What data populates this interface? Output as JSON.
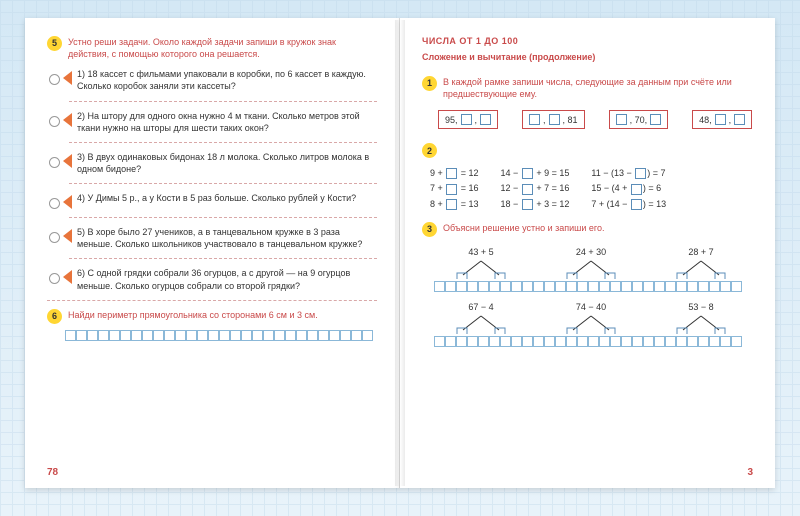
{
  "left": {
    "task5": {
      "num": "5",
      "text": "Устно реши задачи. Около каждой задачи запиши в кружок знак действия, с помощью которого она решается."
    },
    "p1": "1) 18 кассет с фильмами упаковали в коробки, по 6 кассет в каждую. Сколько коробок заняли эти кассеты?",
    "p2": "2) На штору для одного окна нужно 4 м ткани. Сколько метров этой ткани нужно на шторы для шести таких окон?",
    "p3": "3) В двух одинаковых бидонах 18 л молока. Сколько литров молока в одном бидоне?",
    "p4": "4) У Димы 5 р., а у Кости в 5 раз больше. Сколько рублей у Кости?",
    "p5": "5) В хоре было 27 учеников, а в танцевальном кружке в 3 раза меньше. Сколько школьников участвовало в танцевальном кружке?",
    "p6": "6) С одной грядки собрали 36 огурцов, а с другой — на 9 огурцов меньше. Сколько огурцов собрали со второй грядки?",
    "task6": {
      "num": "6",
      "text": "Найди периметр прямоугольника со сторонами 6 см и 3 см."
    },
    "pagenum": "78"
  },
  "right": {
    "header": "ЧИСЛА ОТ 1 ДО 100",
    "subheader": "Сложение и вычитание (продолжение)",
    "task1": {
      "num": "1",
      "text": "В каждой рамке запиши числа, следующие за данным при счёте или предшествующие ему."
    },
    "frames": {
      "f1": "95,",
      "f2": ", 81",
      "f3": ", 70,",
      "f4": "48,"
    },
    "task2num": "2",
    "eq": {
      "r1a": "9 + ",
      "r1b": " = 12",
      "r1c": "14 −",
      "r1d": "+ 9 = 15",
      "r1e": "11 − (13 − ",
      "r1f": ") = 7",
      "r2a": "7 + ",
      "r2b": " = 16",
      "r2c": "12 −",
      "r2d": "+ 7 = 16",
      "r2e": "15 − (4 + ",
      "r2f": ") = 6",
      "r3a": "8 + ",
      "r3b": " = 13",
      "r3c": "18 −",
      "r3d": "+ 3 = 12",
      "r3e": "7 + (14 − ",
      "r3f": ") = 13"
    },
    "task3": {
      "num": "3",
      "text": "Объясни решение устно и запиши его."
    },
    "dias": {
      "d1": "43 + 5",
      "d2": "24 + 30",
      "d3": "28 + 7",
      "d4": "67 − 4",
      "d5": "74 − 40",
      "d6": "53 − 8"
    },
    "pagenum": "3"
  },
  "colors": {
    "accent": "#c94a4a",
    "badge": "#ffd633",
    "tri": "#e8743b",
    "box": "#5b8db8"
  }
}
